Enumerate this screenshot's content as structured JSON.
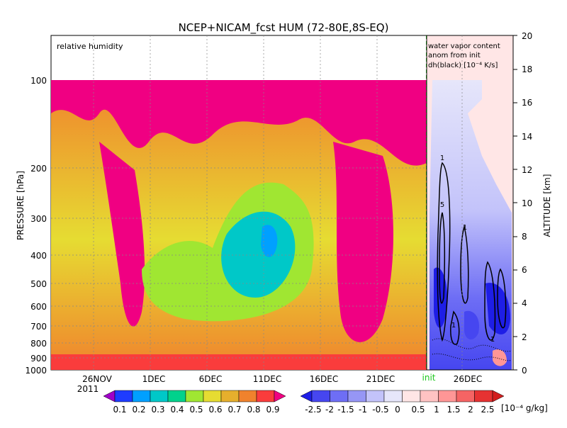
{
  "chart_data": {
    "type": "heatmap",
    "title": "NCEP+NICAM_fcst HUM (72-80E,8S-EQ)",
    "left_panel": {
      "label": "relative humidity",
      "ylabel": "PRESSURE [hPa]",
      "y_ticks": [
        "100",
        "200",
        "300",
        "400",
        "500",
        "600",
        "700",
        "800",
        "900",
        "1000"
      ],
      "y_tick_values": [
        100,
        200,
        300,
        400,
        500,
        600,
        700,
        800,
        900,
        1000
      ],
      "x_ticks": [
        "26NOV",
        "1DEC",
        "6DEC",
        "11DEC",
        "16DEC",
        "21DEC"
      ],
      "year_label": "2011",
      "colorbar_labels": [
        "0.1",
        "0.2",
        "0.3",
        "0.4",
        "0.5",
        "0.6",
        "0.7",
        "0.8",
        "0.9"
      ],
      "colorbar_colors": [
        "#a000c8",
        "#1e3cff",
        "#00a0ff",
        "#00c8c8",
        "#00d28c",
        "#a0e632",
        "#e6dc32",
        "#e6af2d",
        "#f0822d",
        "#fa3c3c",
        "#f00082"
      ],
      "x_start_day": 0,
      "x_end_day": 33,
      "x_tick_days": [
        2.5,
        7.5,
        12.5,
        17.5,
        22.5,
        27.5
      ],
      "bands": [
        {
          "from_day": 0,
          "to_day": 6,
          "top_hpa": 100,
          "value": 0.9
        },
        {
          "from_day": 6,
          "to_day": 11,
          "top_hpa": 120,
          "value": 0.8
        },
        {
          "from_day": 11,
          "to_day": 18,
          "top_hpa": 160,
          "value": 0.7
        },
        {
          "from_day": 18,
          "to_day": 24,
          "top_hpa": 230,
          "value": 0.6
        },
        {
          "from_day": 24,
          "to_day": 33,
          "top_hpa": 100,
          "value": 0.9
        }
      ]
    },
    "right_panel": {
      "label_lines": [
        "water vapor content",
        "anom from init",
        "dh(black) [10⁻⁴ K/s]"
      ],
      "ylabel": "ALTITUDE [km]",
      "y_ticks": [
        "0",
        "2",
        "4",
        "6",
        "8",
        "10",
        "12",
        "14",
        "16",
        "18",
        "20"
      ],
      "y_tick_values": [
        0,
        2,
        4,
        6,
        8,
        10,
        12,
        14,
        16,
        18,
        20
      ],
      "x_ticks": [
        "init",
        "26DEC"
      ],
      "contour_labels": [
        "1",
        "5",
        "1",
        "1",
        "1"
      ],
      "colorbar_labels": [
        "-2.5",
        "-2",
        "-1.5",
        "-1",
        "-0.5",
        "0",
        "0.5",
        "1",
        "1.5",
        "2",
        "2.5"
      ],
      "colorbar_unit": "[10⁻⁴ g/kg]",
      "colorbar_colors": [
        "#1e1ee6",
        "#4646f0",
        "#6e6ef5",
        "#9696f5",
        "#c3c3fa",
        "#e6e6fa",
        "#ffe6e6",
        "#ffc3c3",
        "#ff9696",
        "#f56464",
        "#e63232",
        "#d21e1e"
      ]
    }
  }
}
